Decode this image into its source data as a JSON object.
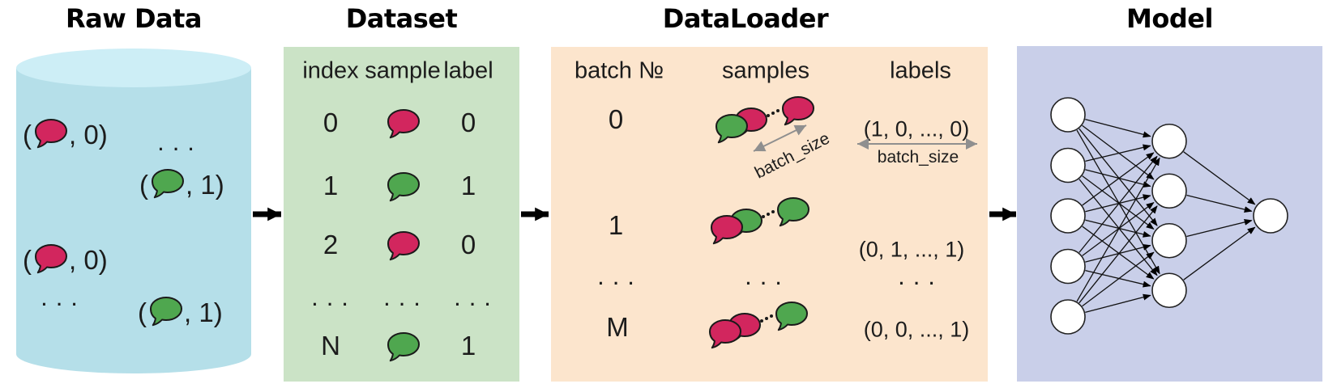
{
  "titles": {
    "raw_data": "Raw Data",
    "dataset": "Dataset",
    "dataloader": "DataLoader",
    "model": "Model"
  },
  "palette": {
    "bubble_red": "#d2265e",
    "bubble_green": "#4fa74f",
    "outline": "#1a1a1a",
    "cylinder_body": "#b5dfe9",
    "cylinder_top": "#cdeef6",
    "dataset_bg": "#cbe3c6",
    "dataloader_bg": "#fce5cd",
    "model_bg": "#c9cfe9",
    "gray_arrow": "#8f8f8f",
    "flow_arrow": "#000000"
  },
  "raw_data": {
    "ellipsis": "...",
    "pairs": [
      {
        "open": "(",
        "close": ", 0)",
        "color": "#d2265e"
      },
      {
        "open": "(",
        "close": ", 1)",
        "color": "#4fa74f"
      },
      {
        "open": "(",
        "close": ", 0)",
        "color": "#d2265e"
      },
      {
        "open": "(",
        "close": ", 1)",
        "color": "#4fa74f"
      }
    ]
  },
  "dataset": {
    "headers": [
      "index",
      "sample",
      "label"
    ],
    "rows": [
      {
        "index": "0",
        "sample_color": "#d2265e",
        "label": "0"
      },
      {
        "index": "1",
        "sample_color": "#4fa74f",
        "label": "1"
      },
      {
        "index": "2",
        "sample_color": "#d2265e",
        "label": "0"
      },
      {
        "index": "...",
        "sample": "...",
        "label": "..."
      },
      {
        "index": "N",
        "sample_color": "#4fa74f",
        "label": "1"
      }
    ]
  },
  "dataloader": {
    "headers": [
      "batch №",
      "samples",
      "labels"
    ],
    "batch_size_label": "batch_size",
    "rows": [
      {
        "batch": "0",
        "labels": "(1, 0, ..., 0)",
        "front": "#4fa74f",
        "behind": "#d2265e",
        "far": "#d2265e"
      },
      {
        "batch": "1",
        "labels": "(0, 1, ..., 1)",
        "front": "#d2265e",
        "behind": "#4fa74f",
        "far": "#4fa74f"
      },
      {
        "batch": "...",
        "samples": "...",
        "labels": "..."
      },
      {
        "batch": "M",
        "labels": "(0, 0, ..., 1)",
        "front": "#d2265e",
        "behind": "#d2265e",
        "far": "#4fa74f"
      }
    ]
  },
  "model": {
    "layers": [
      5,
      4,
      1
    ]
  }
}
